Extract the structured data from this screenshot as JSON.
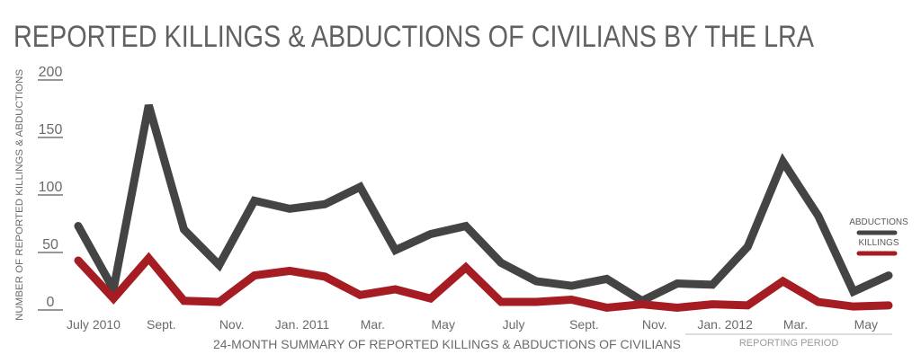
{
  "chart_data": {
    "type": "line",
    "title": "REPORTED KILLINGS & ABDUCTIONS OF CIVILIANS BY THE LRA",
    "xlabel": "24-MONTH SUMMARY OF REPORTED KILLINGS & ABDUCTIONS OF CIVILIANS",
    "ylabel": "NUMBER OF REPORTED KILLINGS  & ABDUCTIONS",
    "ylim": [
      0,
      200
    ],
    "yticks": [
      "0",
      "50",
      "100",
      "150",
      "200"
    ],
    "ytick_values": [
      0,
      50,
      100,
      150,
      200
    ],
    "x": [
      "Jul 2010",
      "Aug 2010",
      "Sep 2010",
      "Oct 2010",
      "Nov 2010",
      "Dec 2010",
      "Jan 2011",
      "Feb 2011",
      "Mar 2011",
      "Apr 2011",
      "May 2011",
      "Jun 2011",
      "Jul 2011",
      "Aug 2011",
      "Sep 2011",
      "Oct 2011",
      "Nov 2011",
      "Dec 2011",
      "Jan 2012",
      "Feb 2012",
      "Mar 2012",
      "Apr 2012",
      "May 2012",
      "Jun 2012"
    ],
    "xtick_labels": [
      {
        "index": 0,
        "label": "July 2010"
      },
      {
        "index": 2,
        "label": "Sept."
      },
      {
        "index": 4,
        "label": "Nov."
      },
      {
        "index": 6,
        "label": "Jan. 2011"
      },
      {
        "index": 8,
        "label": "Mar."
      },
      {
        "index": 10,
        "label": "May"
      },
      {
        "index": 12,
        "label": "July"
      },
      {
        "index": 14,
        "label": "Sept."
      },
      {
        "index": 16,
        "label": "Nov."
      },
      {
        "index": 18,
        "label": "Jan. 2012"
      },
      {
        "index": 20,
        "label": "Mar."
      },
      {
        "index": 22,
        "label": "May"
      }
    ],
    "annotation": {
      "label": "REPORTING PERIOD",
      "from_index": 18,
      "to_index": 23
    },
    "legend_position": "right",
    "grid": false,
    "series": [
      {
        "name": "ABDUCTIONS",
        "color": "#444444",
        "values": [
          73,
          18,
          178,
          70,
          39,
          95,
          88,
          92,
          107,
          52,
          66,
          73,
          41,
          25,
          21,
          27,
          8,
          23,
          22,
          55,
          129,
          82,
          16,
          30
        ]
      },
      {
        "name": "KILLINGS",
        "color": "#a51c22",
        "values": [
          43,
          10,
          45,
          8,
          7,
          30,
          34,
          29,
          13,
          18,
          10,
          37,
          7,
          7,
          9,
          2,
          5,
          2,
          5,
          4,
          25,
          7,
          3,
          4
        ]
      }
    ]
  }
}
